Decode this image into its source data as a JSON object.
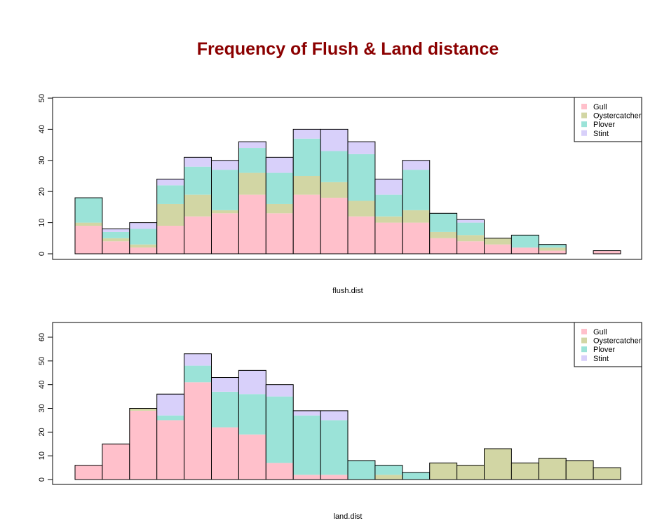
{
  "title": "Frequency of Flush & Land distance",
  "colors": {
    "title": "#8b0000",
    "Gull": "#ffc0cb",
    "Oystercatcher": "#d2d6a4",
    "Plover": "#9be3d8",
    "Stint": "#d8d0fa",
    "outline": "#000000"
  },
  "chart_data": [
    {
      "type": "bar",
      "stacked": true,
      "xlabel": "flush.dist",
      "ylabel": "",
      "ylim": [
        0,
        50
      ],
      "yticks": [
        0,
        10,
        20,
        30,
        40,
        50
      ],
      "legend": "top-right",
      "series_names": [
        "Gull",
        "Oystercatcher",
        "Plover",
        "Stint"
      ],
      "bins": [
        {
          "Gull": 9,
          "Oystercatcher": 1,
          "Plover": 8,
          "Stint": 0
        },
        {
          "Gull": 4,
          "Oystercatcher": 1,
          "Plover": 2,
          "Stint": 1
        },
        {
          "Gull": 2,
          "Oystercatcher": 1,
          "Plover": 5,
          "Stint": 2
        },
        {
          "Gull": 9,
          "Oystercatcher": 7,
          "Plover": 6,
          "Stint": 2
        },
        {
          "Gull": 12,
          "Oystercatcher": 7,
          "Plover": 9,
          "Stint": 3
        },
        {
          "Gull": 13,
          "Oystercatcher": 1,
          "Plover": 13,
          "Stint": 3
        },
        {
          "Gull": 19,
          "Oystercatcher": 7,
          "Plover": 8,
          "Stint": 2
        },
        {
          "Gull": 13,
          "Oystercatcher": 3,
          "Plover": 10,
          "Stint": 5
        },
        {
          "Gull": 19,
          "Oystercatcher": 6,
          "Plover": 12,
          "Stint": 3
        },
        {
          "Gull": 18,
          "Oystercatcher": 5,
          "Plover": 10,
          "Stint": 7
        },
        {
          "Gull": 12,
          "Oystercatcher": 5,
          "Plover": 15,
          "Stint": 4
        },
        {
          "Gull": 10,
          "Oystercatcher": 2,
          "Plover": 7,
          "Stint": 5
        },
        {
          "Gull": 10,
          "Oystercatcher": 4,
          "Plover": 13,
          "Stint": 3
        },
        {
          "Gull": 5,
          "Oystercatcher": 2,
          "Plover": 6,
          "Stint": 0
        },
        {
          "Gull": 4,
          "Oystercatcher": 2,
          "Plover": 4,
          "Stint": 1
        },
        {
          "Gull": 3,
          "Oystercatcher": 2,
          "Plover": 0,
          "Stint": 0
        },
        {
          "Gull": 2,
          "Oystercatcher": 0,
          "Plover": 4,
          "Stint": 0
        },
        {
          "Gull": 1,
          "Oystercatcher": 1,
          "Plover": 1,
          "Stint": 0
        },
        {
          "Gull": 0,
          "Oystercatcher": 0,
          "Plover": 0,
          "Stint": 0
        },
        {
          "Gull": 1,
          "Oystercatcher": 0,
          "Plover": 0,
          "Stint": 0
        }
      ]
    },
    {
      "type": "bar",
      "stacked": true,
      "xlabel": "land.dist",
      "ylabel": "",
      "ylim": [
        0,
        65
      ],
      "yticks": [
        0,
        10,
        20,
        30,
        40,
        50,
        60
      ],
      "legend": "top-right",
      "series_names": [
        "Gull",
        "Oystercatcher",
        "Plover",
        "Stint"
      ],
      "bins": [
        {
          "Gull": 6,
          "Oystercatcher": 0,
          "Plover": 0,
          "Stint": 0
        },
        {
          "Gull": 15,
          "Oystercatcher": 0,
          "Plover": 0,
          "Stint": 0
        },
        {
          "Gull": 29,
          "Oystercatcher": 1,
          "Plover": 0,
          "Stint": 0
        },
        {
          "Gull": 25,
          "Oystercatcher": 0,
          "Plover": 2,
          "Stint": 9
        },
        {
          "Gull": 41,
          "Oystercatcher": 0,
          "Plover": 7,
          "Stint": 5
        },
        {
          "Gull": 22,
          "Oystercatcher": 0,
          "Plover": 15,
          "Stint": 6
        },
        {
          "Gull": 19,
          "Oystercatcher": 0,
          "Plover": 17,
          "Stint": 10
        },
        {
          "Gull": 7,
          "Oystercatcher": 0,
          "Plover": 28,
          "Stint": 5
        },
        {
          "Gull": 2,
          "Oystercatcher": 0,
          "Plover": 25,
          "Stint": 2
        },
        {
          "Gull": 2,
          "Oystercatcher": 0,
          "Plover": 23,
          "Stint": 4
        },
        {
          "Gull": 0,
          "Oystercatcher": 0,
          "Plover": 8,
          "Stint": 0
        },
        {
          "Gull": 0,
          "Oystercatcher": 2,
          "Plover": 4,
          "Stint": 0
        },
        {
          "Gull": 0,
          "Oystercatcher": 0,
          "Plover": 3,
          "Stint": 0
        },
        {
          "Gull": 0,
          "Oystercatcher": 7,
          "Plover": 0,
          "Stint": 0
        },
        {
          "Gull": 0,
          "Oystercatcher": 6,
          "Plover": 0,
          "Stint": 0
        },
        {
          "Gull": 0,
          "Oystercatcher": 13,
          "Plover": 0,
          "Stint": 0
        },
        {
          "Gull": 0,
          "Oystercatcher": 7,
          "Plover": 0,
          "Stint": 0
        },
        {
          "Gull": 0,
          "Oystercatcher": 9,
          "Plover": 0,
          "Stint": 0
        },
        {
          "Gull": 0,
          "Oystercatcher": 8,
          "Plover": 0,
          "Stint": 0
        },
        {
          "Gull": 0,
          "Oystercatcher": 5,
          "Plover": 0,
          "Stint": 0
        }
      ]
    }
  ]
}
